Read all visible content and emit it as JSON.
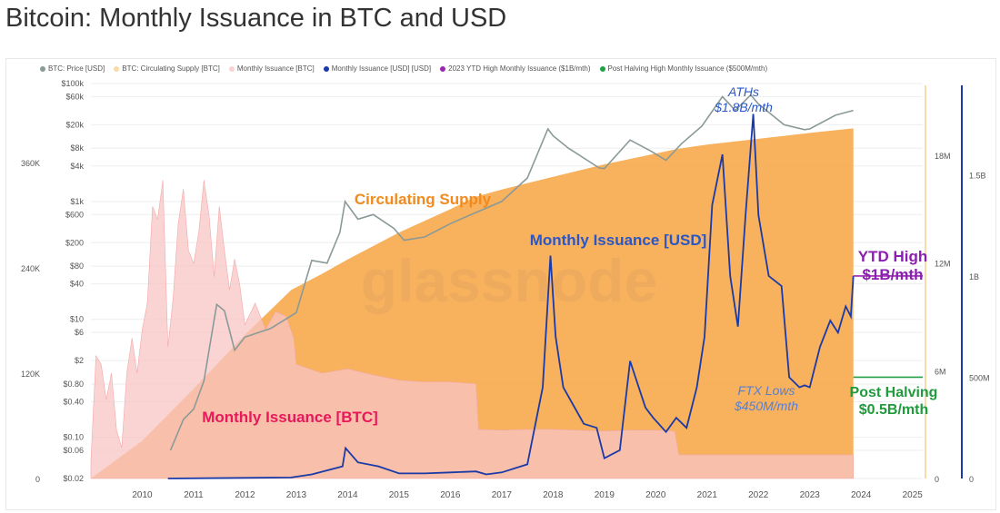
{
  "page": {
    "title": "Bitcoin: Monthly Issuance in BTC and USD"
  },
  "legend": [
    {
      "label": "BTC: Price [USD]",
      "color": "#8a9a98"
    },
    {
      "label": "BTC: Circulating Supply [BTC]",
      "color": "#f7dca8"
    },
    {
      "label": "Monthly Issuance [BTC]",
      "color": "#f8d4d4"
    },
    {
      "label": "Monthly Issuance [USD] [USD]",
      "color": "#1a3aa8"
    },
    {
      "label": "2023 YTD High Monthly Issuance ($1B/mth)",
      "color": "#9b27b0"
    },
    {
      "label": "Post Halving High Monthly Issuance ($500M/mth)",
      "color": "#22a045"
    }
  ],
  "watermark": "glassnode",
  "annotations": {
    "circulating_supply": "Circulating Supply",
    "monthly_issuance_usd": "Monthly Issuance [USD]",
    "monthly_issuance_btc": "Monthly Issuance [BTC]",
    "aths_line1": "ATHs",
    "aths_line2": "$1.8B/mth",
    "ftx_line1": "FTX Lows",
    "ftx_line2": "$450M/mth",
    "ytd_line1": "YTD High",
    "ytd_line2": "$1B/mth",
    "post_line1": "Post Halving",
    "post_line2": "$0.5B/mth"
  },
  "chart_data": {
    "type": "area",
    "x_ticks": [
      "2010",
      "2011",
      "2012",
      "2013",
      "2014",
      "2015",
      "2016",
      "2017",
      "2018",
      "2019",
      "2020",
      "2021",
      "2022",
      "2023",
      "2024",
      "2025"
    ],
    "xlim": [
      2009.0,
      2025.2
    ],
    "axes": {
      "issuance_btc": {
        "scale": "linear",
        "range": [
          0,
          450000
        ],
        "ticks": [
          0,
          120000,
          240000,
          360000
        ],
        "tick_labels": [
          "0",
          "120K",
          "240K",
          "360K"
        ]
      },
      "price_usd": {
        "scale": "log",
        "range": [
          0.02,
          100000
        ],
        "ticks": [
          0.02,
          0.06,
          0.1,
          0.4,
          0.8,
          2,
          6,
          10,
          40,
          80,
          200,
          600,
          1000,
          4000,
          8000,
          20000,
          60000,
          100000
        ],
        "tick_labels": [
          "$0.02",
          "$0.06",
          "$0.10",
          "$0.40",
          "$0.80",
          "$2",
          "$6",
          "$10",
          "$40",
          "$80",
          "$200",
          "$600",
          "$1k",
          "$4k",
          "$8k",
          "$20k",
          "$60k",
          "$100k"
        ]
      },
      "supply_btc": {
        "scale": "linear",
        "range": [
          0,
          22000000
        ],
        "ticks": [
          0,
          6000000,
          12000000,
          18000000
        ],
        "tick_labels": [
          "0",
          "6M",
          "12M",
          "18M"
        ]
      },
      "issuance_usd": {
        "scale": "linear",
        "range": [
          0,
          1950000000
        ],
        "ticks": [
          0,
          500000000,
          1000000000,
          1500000000
        ],
        "tick_labels": [
          "0",
          "500M",
          "1B",
          "1.5B"
        ]
      }
    },
    "series": [
      {
        "name": "Monthly Issuance [BTC]",
        "axis": "issuance_btc",
        "color": "#f8c4c4",
        "x": [
          2009.0,
          2009.1,
          2009.2,
          2009.3,
          2009.4,
          2009.5,
          2009.6,
          2009.7,
          2009.8,
          2009.9,
          2010.0,
          2010.1,
          2010.2,
          2010.3,
          2010.4,
          2010.5,
          2010.6,
          2010.7,
          2010.8,
          2010.9,
          2011.0,
          2011.1,
          2011.2,
          2011.3,
          2011.4,
          2011.5,
          2011.6,
          2011.7,
          2011.8,
          2011.9,
          2012.0,
          2012.2,
          2012.4,
          2012.6,
          2012.8,
          2012.95,
          2013.0,
          2013.5,
          2014.0,
          2014.5,
          2015.0,
          2015.5,
          2016.0,
          2016.5,
          2016.55,
          2017.0,
          2017.5,
          2018.0,
          2018.5,
          2019.0,
          2019.5,
          2020.0,
          2020.37,
          2020.45,
          2021.0,
          2021.5,
          2022.0,
          2022.5,
          2023.0,
          2023.5,
          2023.85
        ],
        "values": [
          20000,
          140000,
          130000,
          90000,
          120000,
          55000,
          35000,
          120000,
          160000,
          120000,
          170000,
          200000,
          310000,
          295000,
          340000,
          150000,
          205000,
          290000,
          330000,
          260000,
          245000,
          280000,
          340000,
          300000,
          230000,
          310000,
          260000,
          215000,
          250000,
          220000,
          175000,
          200000,
          170000,
          190000,
          185000,
          160000,
          130000,
          120000,
          125000,
          118000,
          112000,
          110000,
          110000,
          108000,
          56000,
          55000,
          56000,
          56000,
          55000,
          54000,
          55000,
          55000,
          54000,
          27000,
          27000,
          27000,
          27000,
          27000,
          27000,
          27000,
          27000
        ]
      },
      {
        "name": "BTC: Circulating Supply [BTC]",
        "axis": "supply_btc",
        "color": "#f7a94a",
        "x": [
          2009.0,
          2010.0,
          2011.0,
          2012.0,
          2012.9,
          2013.5,
          2014.0,
          2015.0,
          2016.0,
          2016.5,
          2017.0,
          2018.0,
          2019.0,
          2020.0,
          2020.4,
          2021.0,
          2022.0,
          2023.0,
          2023.85
        ],
        "values": [
          0,
          2100000,
          5000000,
          8000000,
          10500000,
          11400000,
          12200000,
          13700000,
          15000000,
          15700000,
          16100000,
          16800000,
          17500000,
          18100000,
          18350000,
          18600000,
          18920000,
          19250000,
          19500000
        ]
      },
      {
        "name": "BTC: Price [USD]",
        "axis": "price_usd",
        "color": "#8a9a98",
        "x": [
          2010.55,
          2010.8,
          2011.0,
          2011.2,
          2011.45,
          2011.6,
          2011.8,
          2012.0,
          2012.5,
          2013.0,
          2013.3,
          2013.6,
          2013.85,
          2013.95,
          2014.2,
          2014.5,
          2014.9,
          2015.1,
          2015.5,
          2016.0,
          2016.5,
          2017.0,
          2017.5,
          2017.9,
          2018.0,
          2018.3,
          2018.9,
          2019.0,
          2019.5,
          2019.9,
          2020.2,
          2020.5,
          2020.9,
          2021.3,
          2021.55,
          2021.85,
          2022.0,
          2022.5,
          2022.9,
          2023.0,
          2023.5,
          2023.85
        ],
        "values": [
          0.06,
          0.2,
          0.3,
          0.9,
          18,
          14,
          3,
          5,
          7,
          13,
          100,
          90,
          300,
          1000,
          500,
          600,
          350,
          220,
          250,
          420,
          650,
          1000,
          2500,
          17000,
          13000,
          8000,
          3700,
          3600,
          11000,
          7200,
          5000,
          9500,
          19000,
          60000,
          35000,
          64000,
          45000,
          20000,
          16500,
          17000,
          29000,
          35000
        ]
      },
      {
        "name": "Monthly Issuance [USD] [USD]",
        "axis": "issuance_usd",
        "color": "#1a3aa8",
        "x": [
          2010.5,
          2012.9,
          2013.3,
          2013.9,
          2013.96,
          2014.2,
          2014.6,
          2015.0,
          2015.5,
          2016.0,
          2016.5,
          2016.7,
          2017.0,
          2017.5,
          2017.8,
          2017.95,
          2018.05,
          2018.2,
          2018.6,
          2018.85,
          2019.0,
          2019.3,
          2019.5,
          2019.8,
          2019.95,
          2020.2,
          2020.4,
          2020.6,
          2020.8,
          2020.95,
          2021.1,
          2021.3,
          2021.45,
          2021.6,
          2021.75,
          2021.9,
          2022.0,
          2022.2,
          2022.45,
          2022.6,
          2022.8,
          2022.9,
          2023.0,
          2023.2,
          2023.4,
          2023.55,
          2023.7,
          2023.8,
          2023.85
        ],
        "values": [
          0,
          5000000,
          20000000,
          60000000,
          150000000,
          80000000,
          60000000,
          25000000,
          25000000,
          30000000,
          35000000,
          20000000,
          30000000,
          70000000,
          450000000,
          1100000000,
          700000000,
          450000000,
          270000000,
          250000000,
          100000000,
          140000000,
          580000000,
          350000000,
          300000000,
          230000000,
          300000000,
          250000000,
          450000000,
          700000000,
          1350000000,
          1600000000,
          1000000000,
          750000000,
          1300000000,
          1800000000,
          1300000000,
          1000000000,
          950000000,
          500000000,
          450000000,
          460000000,
          450000000,
          650000000,
          780000000,
          720000000,
          850000000,
          800000000,
          1000000000
        ]
      }
    ],
    "reference_lines": [
      {
        "name": "2023 YTD High Monthly Issuance ($1B/mth)",
        "axis": "issuance_usd",
        "value": 1000000000,
        "x_range": [
          2023.85,
          2025.2
        ],
        "color": "#9b27b0"
      },
      {
        "name": "Post Halving High Monthly Issuance ($500M/mth)",
        "axis": "issuance_usd",
        "value": 500000000,
        "x_range": [
          2023.85,
          2025.2
        ],
        "color": "#22a045"
      }
    ],
    "colors": {
      "btc_area": "#f8c4c4",
      "supply_area": "#f7a94a",
      "overlap": "#f59b80",
      "price_line": "#8a9a98",
      "usd_line": "#1a3aa8",
      "ytd": "#9b27b0",
      "post": "#22a045"
    }
  }
}
